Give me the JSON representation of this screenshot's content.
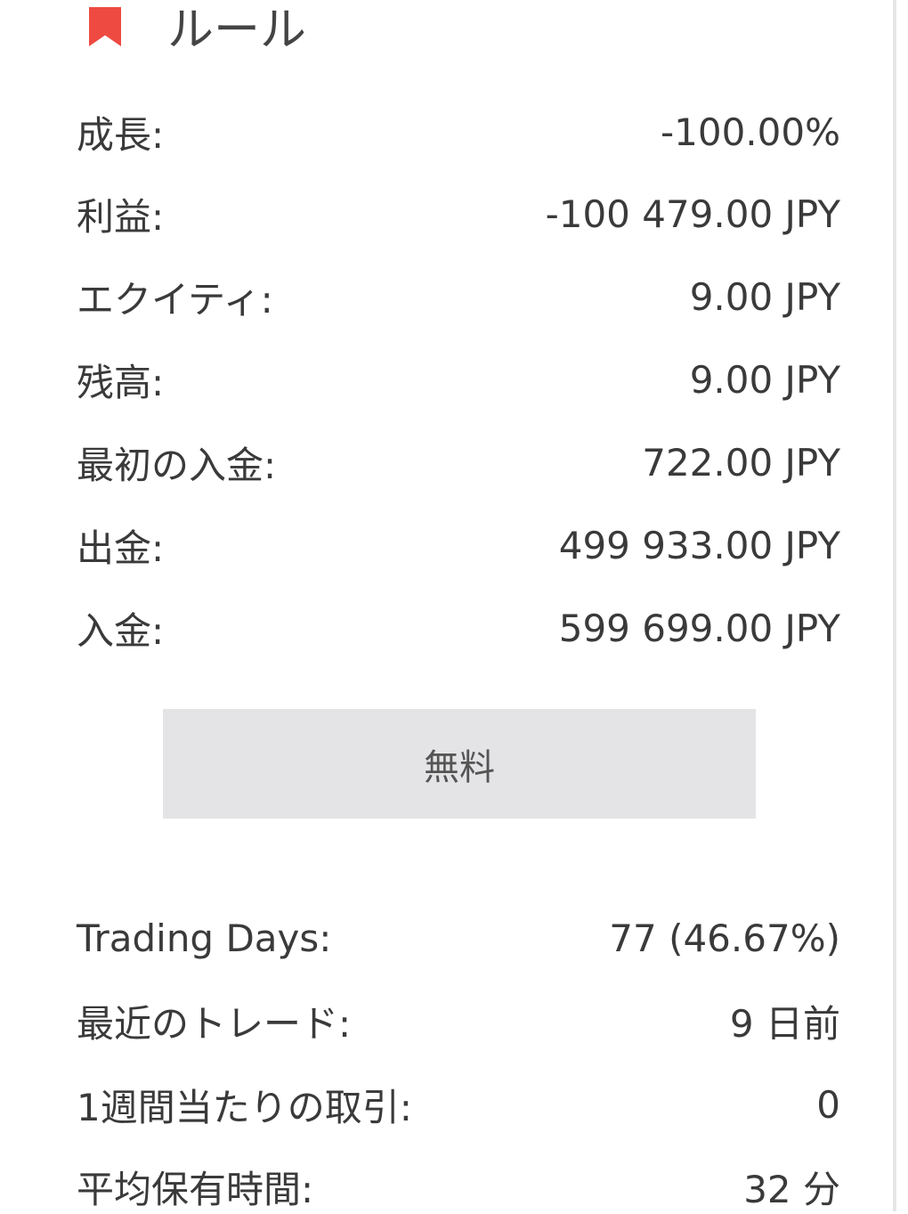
{
  "header": {
    "title": "ルール",
    "icon": "bookmark-icon",
    "icon_color": "#ee4a42"
  },
  "stats": [
    {
      "label": "成長:",
      "value": "-100.00%"
    },
    {
      "label": "利益:",
      "value": "-100 479.00 JPY"
    },
    {
      "label": "エクイティ:",
      "value": "9.00 JPY"
    },
    {
      "label": "残高:",
      "value": "9.00 JPY"
    },
    {
      "label": "最初の入金:",
      "value": "722.00 JPY"
    },
    {
      "label": "出金:",
      "value": "499 933.00 JPY"
    },
    {
      "label": "入金:",
      "value": "599 699.00 JPY"
    }
  ],
  "button": {
    "label": "無料"
  },
  "activity": [
    {
      "label": "Trading Days:",
      "value": "77 (46.67%)"
    },
    {
      "label": "最近のトレード:",
      "value": "9 日前"
    },
    {
      "label": "1週間当たりの取引:",
      "value": "0"
    },
    {
      "label": "平均保有時間:",
      "value": "32 分"
    }
  ]
}
